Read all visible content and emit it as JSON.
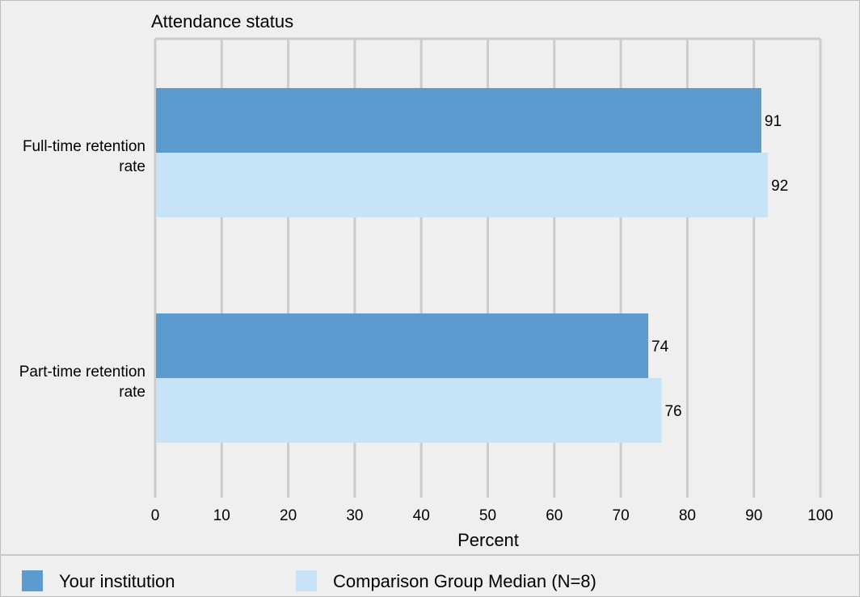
{
  "chart_data": {
    "type": "bar",
    "orientation": "horizontal",
    "title": "Attendance status",
    "xlabel": "Percent",
    "ylabel": "",
    "xlim": [
      0,
      100
    ],
    "x_ticks": [
      0,
      10,
      20,
      30,
      40,
      50,
      60,
      70,
      80,
      90,
      100
    ],
    "categories": [
      [
        "Full-time retention",
        "rate"
      ],
      [
        "Part-time retention",
        "rate"
      ]
    ],
    "series": [
      {
        "name": "Your institution",
        "values": [
          91,
          74
        ],
        "color": "#5b9bd0"
      },
      {
        "name": "Comparison Group Median (N=8)",
        "values": [
          92,
          76
        ],
        "color": "#c7e3f7"
      }
    ],
    "grid": true,
    "legend_position": "bottom",
    "data_labels": true
  }
}
